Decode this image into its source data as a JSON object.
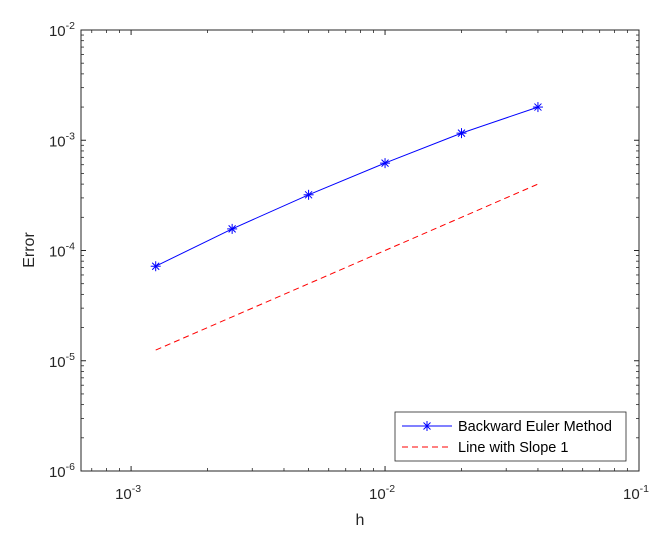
{
  "chart_data": {
    "type": "line",
    "title": "",
    "xlabel": "h",
    "ylabel": "Error",
    "xscale": "log",
    "yscale": "log",
    "xlim": [
      0.000635,
      0.1
    ],
    "ylim": [
      1e-06,
      0.01
    ],
    "grid": false,
    "legend_position": "lower right",
    "x_ticks": [
      {
        "value": 0.001,
        "base": "10",
        "exp": "-3"
      },
      {
        "value": 0.01,
        "base": "10",
        "exp": "-2"
      },
      {
        "value": 0.1,
        "base": "10",
        "exp": "-1"
      }
    ],
    "y_ticks": [
      {
        "value": 1e-06,
        "base": "10",
        "exp": "-6"
      },
      {
        "value": 1e-05,
        "base": "10",
        "exp": "-5"
      },
      {
        "value": 0.0001,
        "base": "10",
        "exp": "-4"
      },
      {
        "value": 0.001,
        "base": "10",
        "exp": "-3"
      },
      {
        "value": 0.01,
        "base": "10",
        "exp": "-2"
      }
    ],
    "x": [
      0.00125,
      0.0025,
      0.005,
      0.01,
      0.02,
      0.04
    ],
    "series": [
      {
        "name": "Backward Euler Method",
        "color": "#0000ff",
        "line_style": "solid",
        "marker": "asterisk",
        "values": [
          7.2e-05,
          0.000157,
          0.00032,
          0.00062,
          0.00116,
          0.002
        ]
      },
      {
        "name": "Line with Slope 1",
        "color": "#ff0000",
        "line_style": "dashed",
        "marker": "none",
        "values": [
          1.25e-05,
          2.5e-05,
          5e-05,
          0.0001,
          0.0002,
          0.0004
        ]
      }
    ]
  }
}
